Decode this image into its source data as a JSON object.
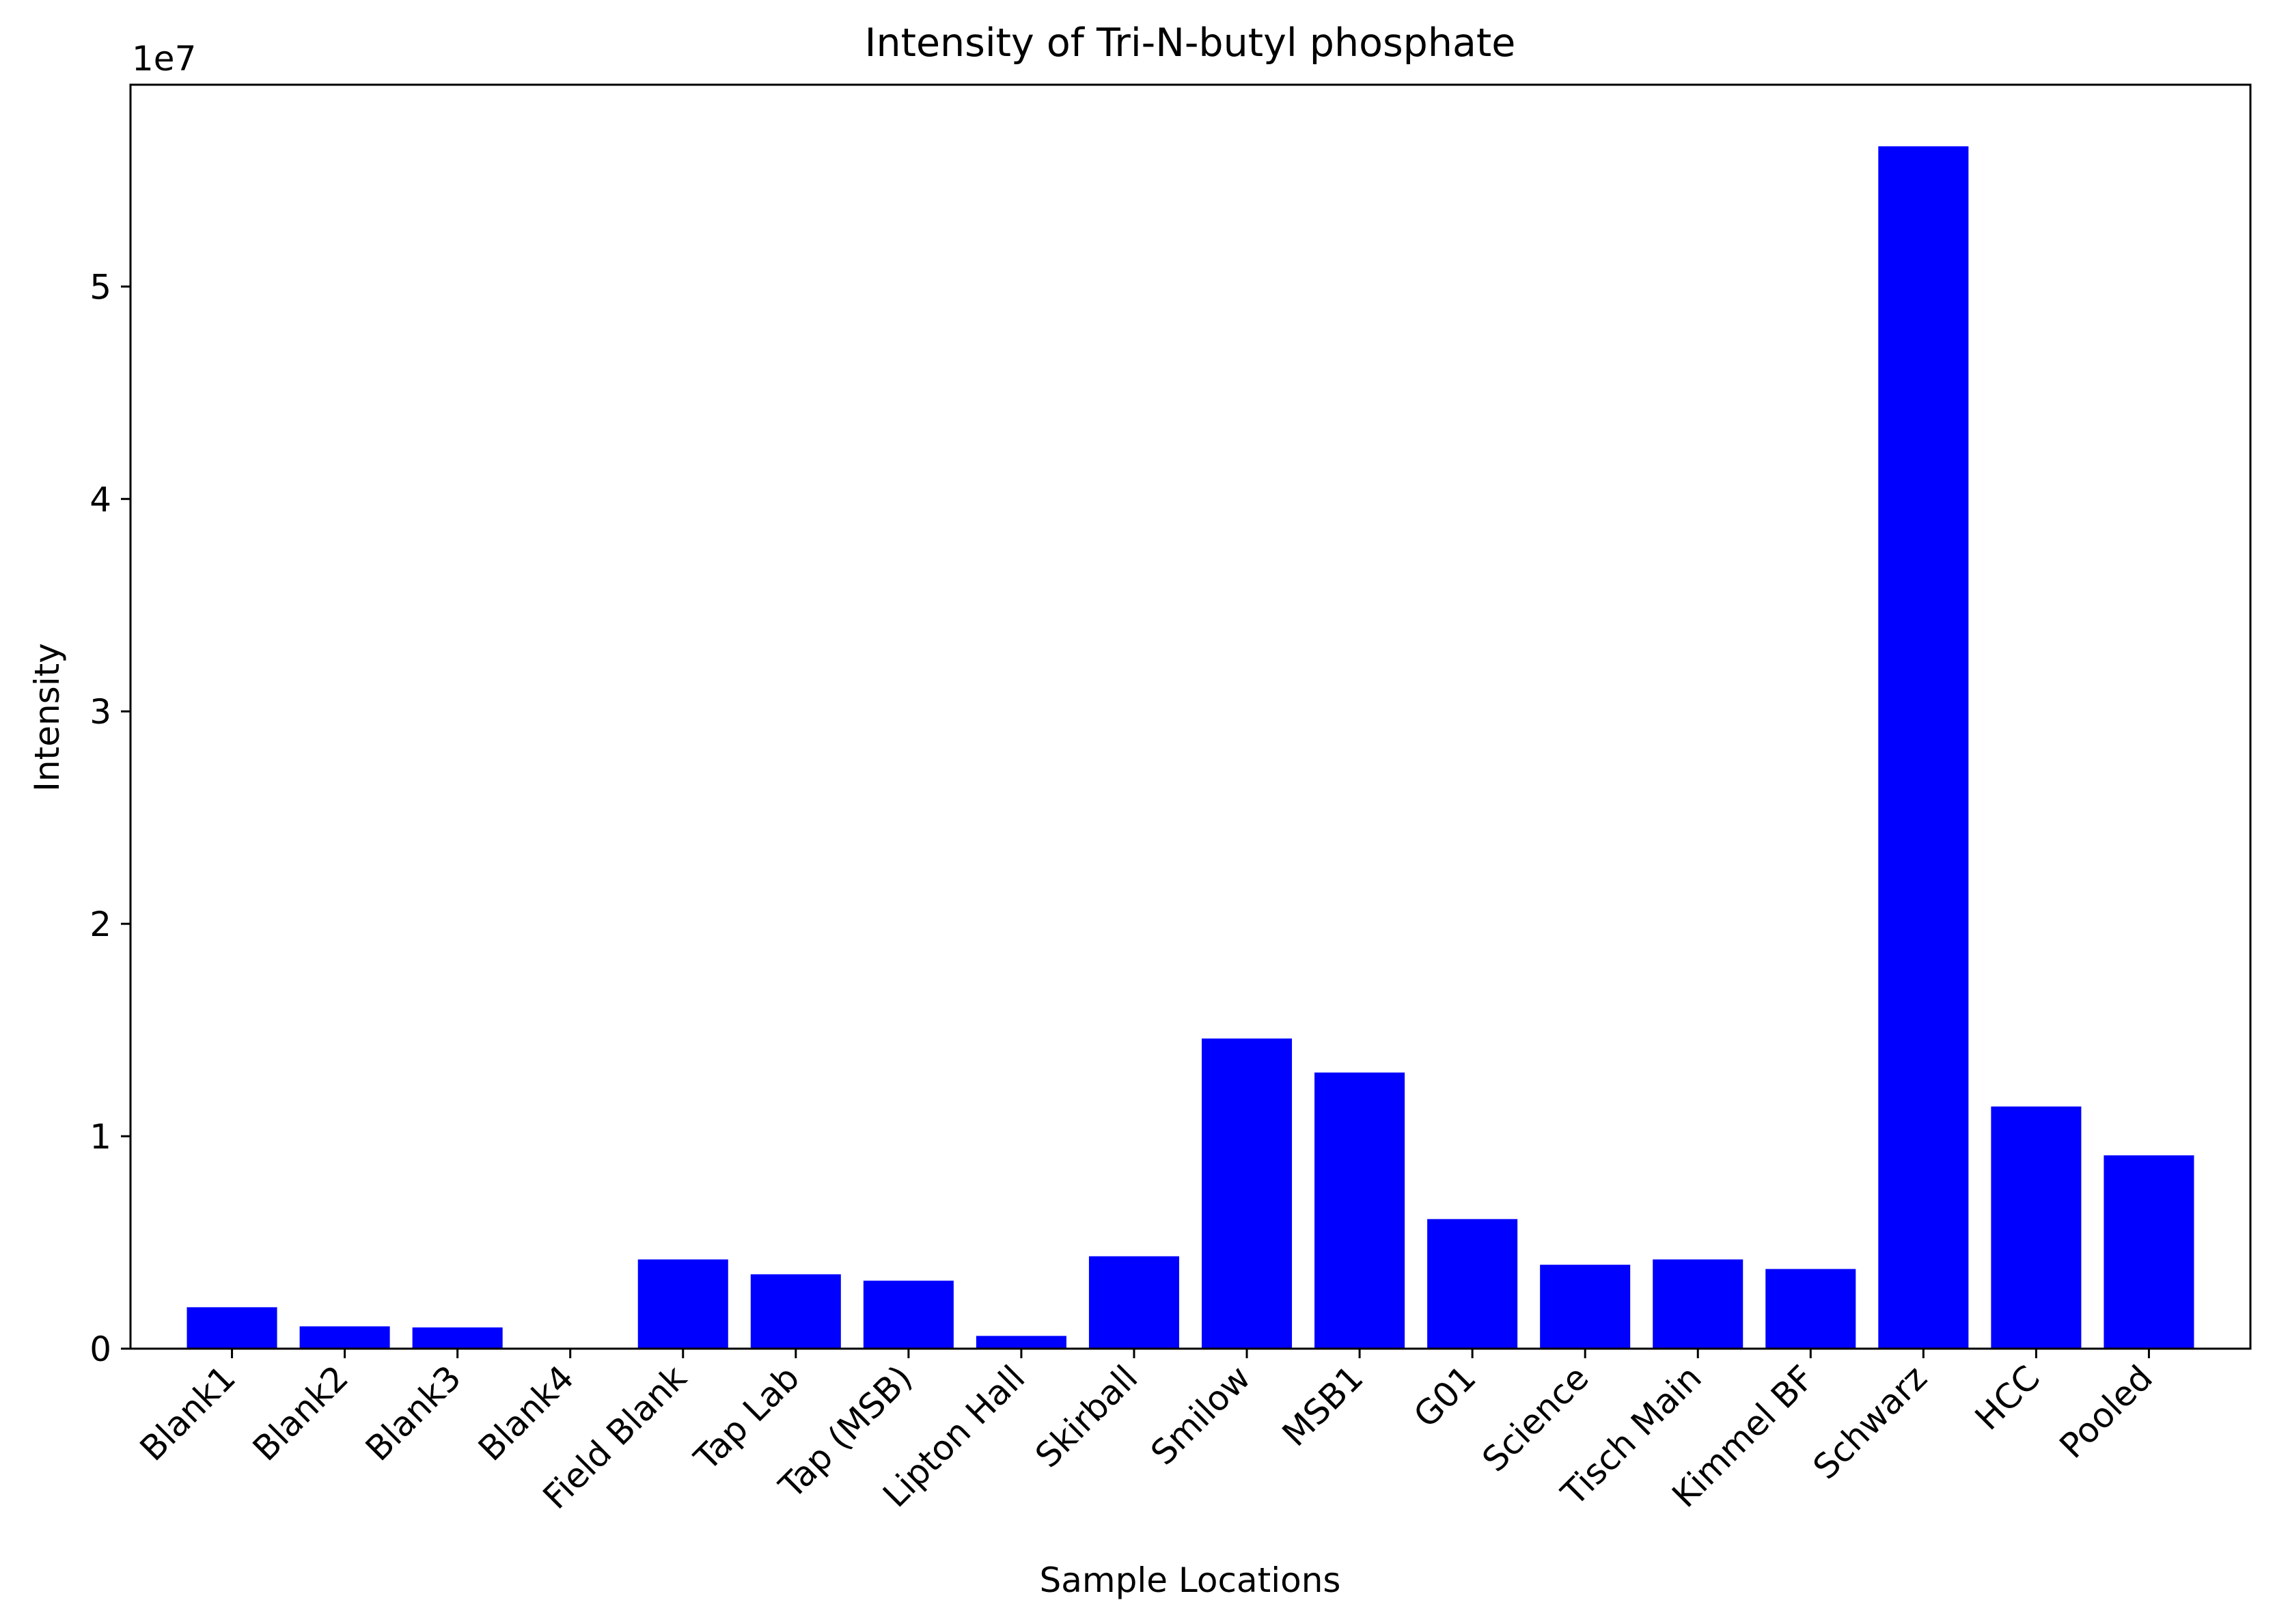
{
  "chart_data": {
    "type": "bar",
    "title": "Intensity of Tri-N-butyl phosphate",
    "xlabel": "Sample Locations",
    "ylabel": "Intensity",
    "y_offset_text": "1e7",
    "y_scale": 10000000,
    "ylim": [
      0,
      59500000
    ],
    "yticks": [
      0,
      10000000,
      20000000,
      30000000,
      40000000,
      50000000
    ],
    "ytick_labels": [
      "0",
      "1",
      "2",
      "3",
      "4",
      "5"
    ],
    "categories": [
      "Blank1",
      "Blank2",
      "Blank3",
      "Blank4",
      "Field Blank",
      "Tap Lab",
      "Tap (MSB)",
      "Lipton Hall",
      "Skirball",
      "Smilow",
      "MSB1",
      "G01",
      "Science",
      "Tisch Main",
      "Kimmel BF",
      "Schwarz",
      "HCC",
      "Pooled"
    ],
    "values": [
      1950000,
      1050000,
      1000000,
      0,
      4200000,
      3500000,
      3200000,
      600000,
      4350000,
      14600000,
      13000000,
      6100000,
      3950000,
      4200000,
      3750000,
      56600000,
      11400000,
      9100000
    ],
    "bar_color": "#0000ff",
    "grid": false,
    "legend": "none"
  }
}
